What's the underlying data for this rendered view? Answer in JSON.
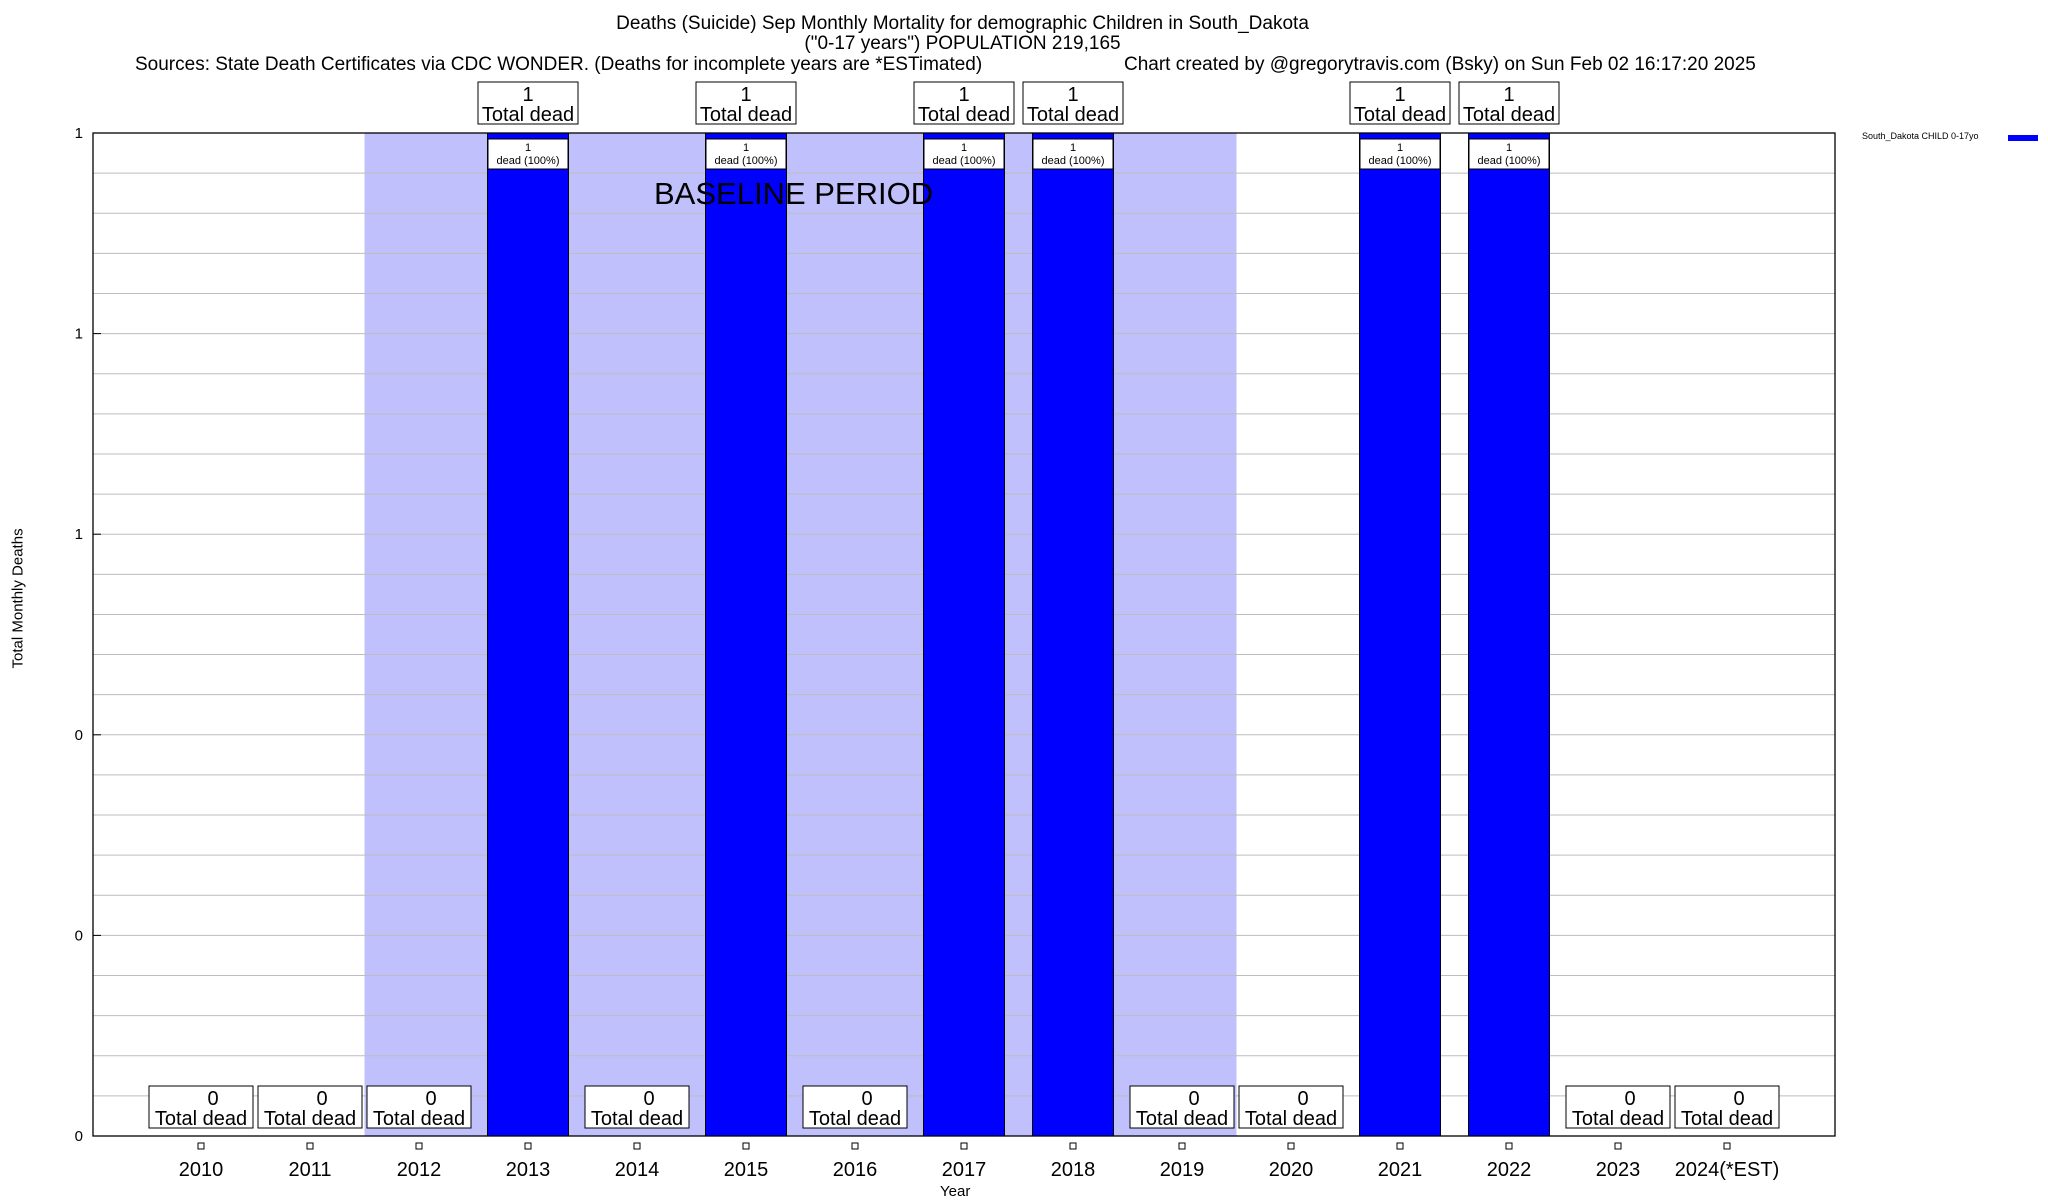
{
  "header": {
    "title_line1": "Deaths (Suicide) Sep Monthly Mortality for demographic Children in South_Dakota",
    "title_line2": "(\"0-17 years\") POPULATION 219,165",
    "source": "Sources: State Death Certificates via CDC WONDER. (Deaths for incomplete years are *ESTimated)",
    "credit": "Chart created by @gregorytravis.com (Bsky) on Sun Feb 02 16:17:20 2025"
  },
  "annotation": {
    "baseline": "BASELINE PERIOD"
  },
  "chart_data": {
    "type": "bar",
    "title": "Deaths (Suicide) Sep Monthly Mortality for demographic Children in South_Dakota",
    "subtitle": "(\"0-17 years\") POPULATION 219,165",
    "xlabel": "Year",
    "ylabel": "Total Monthly Deaths",
    "categories": [
      "2010",
      "2011",
      "2012",
      "2013",
      "2014",
      "2015",
      "2016",
      "2017",
      "2018",
      "2019",
      "2020",
      "2021",
      "2022",
      "2023",
      "2024(*EST)"
    ],
    "series": [
      {
        "name": "South_Dakota CHILD 0-17yo",
        "color": "#0000ff",
        "values": [
          0,
          0,
          0,
          1,
          0,
          1,
          0,
          1,
          1,
          0,
          0,
          1,
          1,
          0,
          0
        ]
      }
    ],
    "total_label_numbers": [
      "0",
      "0",
      "0",
      "1",
      "0",
      "1",
      "0",
      "1",
      "1",
      "0",
      "0",
      "1",
      "1",
      "0",
      "0"
    ],
    "total_label_text": "Total dead",
    "bar_label_number": "1",
    "bar_label_text": "dead (100%)",
    "ylim": [
      0,
      1
    ],
    "ytick_labels": [
      "0",
      "0",
      "0",
      "1",
      "1",
      "1"
    ],
    "baseline_period": [
      "2012",
      "2019"
    ],
    "baseline_color": "#c0c0fc",
    "grid": true,
    "legend_position": "top-right"
  }
}
